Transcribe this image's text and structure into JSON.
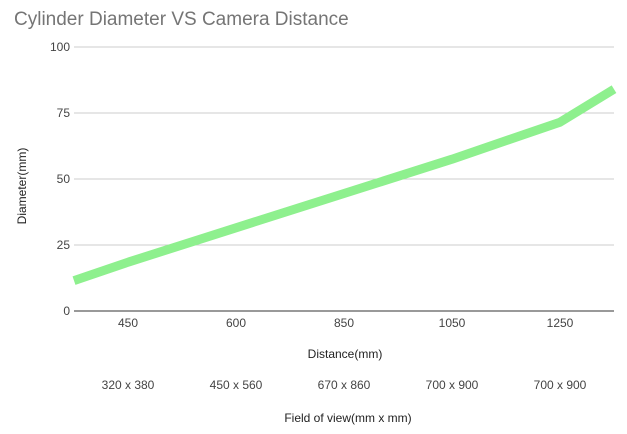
{
  "colors": {
    "line": "#8ef08e",
    "grid": "#cccccc",
    "title": "#757575"
  },
  "chart_data": {
    "type": "line",
    "title": "Cylinder Diameter VS Camera Distance",
    "xlabel": "Distance(mm)",
    "ylabel": "Diameter(mm)",
    "categories": [
      "450",
      "600",
      "850",
      "1050",
      "1250"
    ],
    "secondary_categories": [
      "320 x 380",
      "450 x 560",
      "670 x 860",
      "700 x 900",
      "700 x 900"
    ],
    "secondary_xlabel": "Field of view(mm x mm)",
    "ylim": [
      0,
      100
    ],
    "yticks": [
      "0",
      "25",
      "50",
      "75",
      "100"
    ],
    "grid": true,
    "legend": "none",
    "series": [
      {
        "values": [
          18.5,
          31.5,
          44.5,
          57.5,
          71.5
        ]
      }
    ],
    "line_extent": {
      "start_value": 11.5,
      "end_value": 84
    }
  }
}
